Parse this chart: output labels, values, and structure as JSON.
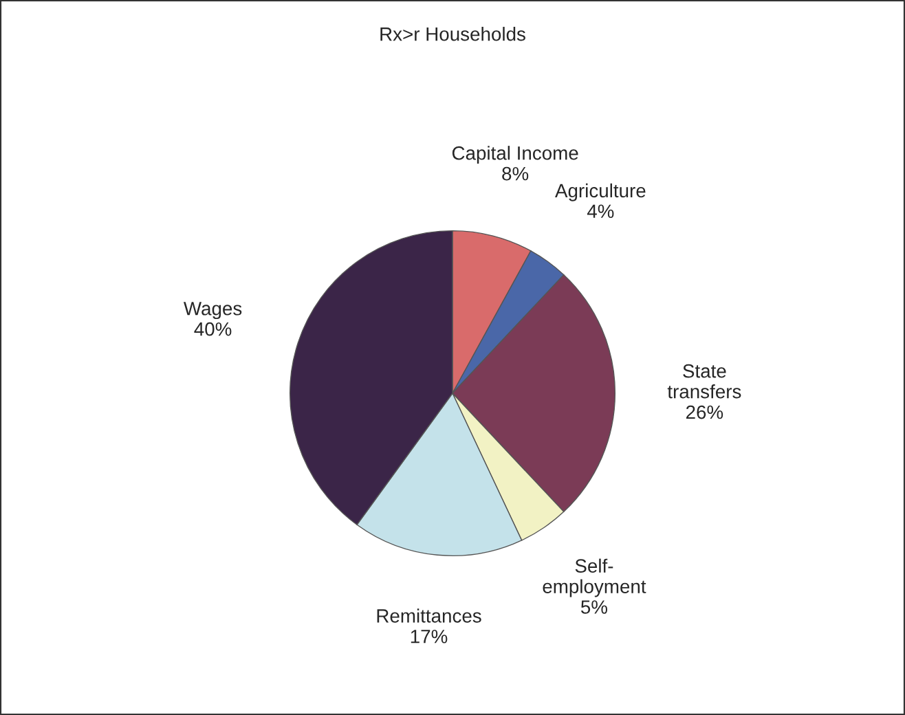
{
  "chart_data": {
    "type": "pie",
    "title": "Rx>r Households",
    "categories": [
      "Capital Income",
      "Agriculture",
      "State\ntransfers",
      "Self-\nemployment",
      "Remittances",
      "Wages"
    ],
    "values": [
      8,
      4,
      26,
      5,
      17,
      40
    ],
    "value_labels": [
      "8%",
      "4%",
      "26%",
      "5%",
      "17%",
      "40%"
    ],
    "colors": [
      "#d96b6b",
      "#4a67a8",
      "#7b3b56",
      "#f2f2c4",
      "#c4e2ea",
      "#3b2548"
    ],
    "legend": false
  }
}
